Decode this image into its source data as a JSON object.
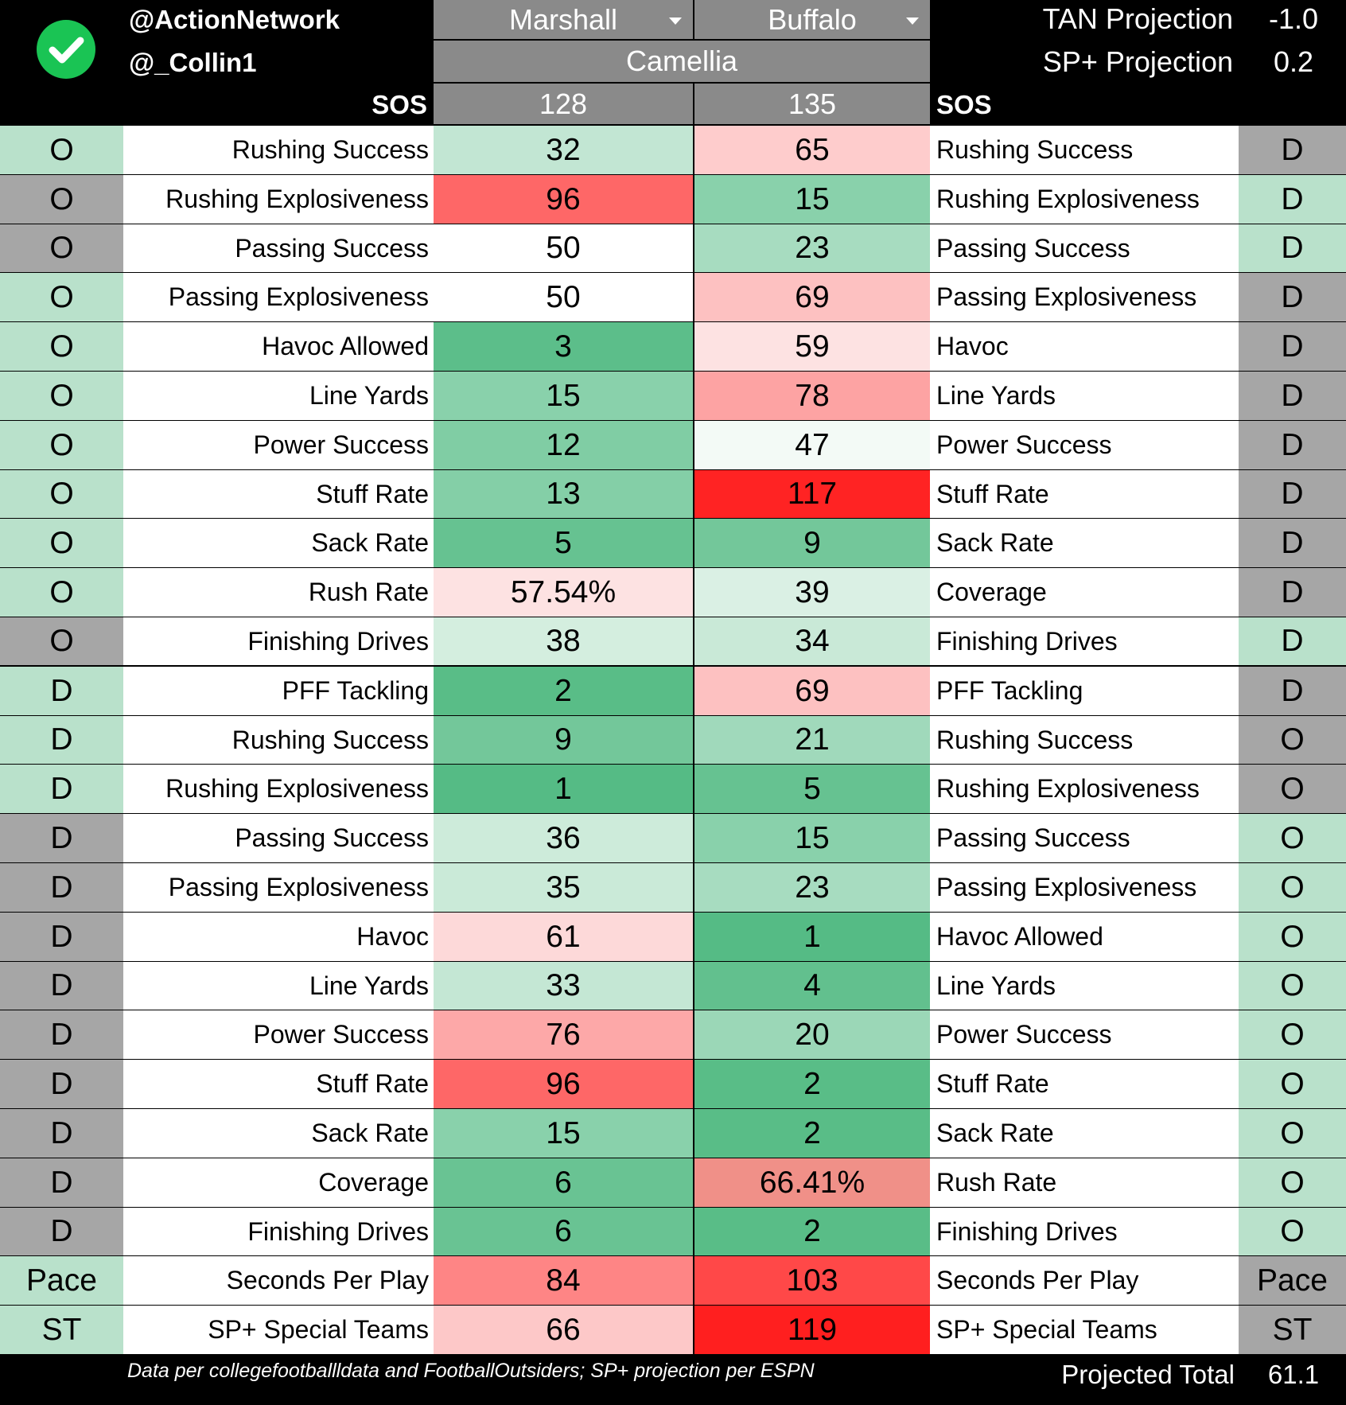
{
  "header": {
    "logo_icon": "green-check-icon",
    "handle1": "@ActionNetwork",
    "handle2": "@_Collin1",
    "team_left": "Marshall",
    "team_right": "Buffalo",
    "bowl": "Camellia",
    "sos_label": "SOS",
    "sos_left": "128",
    "sos_right": "135",
    "tan_label": "TAN Projection",
    "tan_value": "-1.0",
    "sp_label": "SP+ Projection",
    "sp_value": "0.2"
  },
  "colors": {
    "side_green": "#b9e1cb",
    "side_gray": "#a6a6a6",
    "header_gray": "#8a8a8a"
  },
  "rows": [
    {
      "ls": "O",
      "lsc": "g",
      "lm": "Rushing Success",
      "lv": "32",
      "lc": "#c2e6d3",
      "rv": "65",
      "rc": "#fecccc",
      "rm": "Rushing Success",
      "rs": "D",
      "rsc": "x"
    },
    {
      "ls": "O",
      "lsc": "x",
      "lm": "Rushing Explosiveness",
      "lv": "96",
      "lc": "#fe6767",
      "rv": "15",
      "rc": "#89d1ab",
      "rm": "Rushing Explosiveness",
      "rs": "D",
      "rsc": "g"
    },
    {
      "ls": "O",
      "lsc": "x",
      "lm": "Passing Success",
      "lv": "50",
      "lc": "#ffffff",
      "rv": "23",
      "rc": "#a7dcc0",
      "rm": "Passing Success",
      "rs": "D",
      "rsc": "g"
    },
    {
      "ls": "O",
      "lsc": "g",
      "lm": "Passing Explosiveness",
      "lv": "50",
      "lc": "#ffffff",
      "rv": "69",
      "rc": "#fdc1c1",
      "rm": "Passing Explosiveness",
      "rs": "D",
      "rsc": "x"
    },
    {
      "ls": "O",
      "lsc": "g",
      "lm": "Havoc Allowed",
      "lv": "3",
      "lc": "#5cbe8a",
      "rv": "59",
      "rc": "#fde2e2",
      "rm": "Havoc",
      "rs": "D",
      "rsc": "x"
    },
    {
      "ls": "O",
      "lsc": "g",
      "lm": "Line Yards",
      "lv": "15",
      "lc": "#89d1ab",
      "rv": "78",
      "rc": "#fda3a3",
      "rm": "Line Yards",
      "rs": "D",
      "rsc": "x"
    },
    {
      "ls": "O",
      "lsc": "g",
      "lm": "Power Success",
      "lv": "12",
      "lc": "#80cda4",
      "rv": "47",
      "rc": "#f3faf6",
      "rm": "Power Success",
      "rs": "D",
      "rsc": "x"
    },
    {
      "ls": "O",
      "lsc": "g",
      "lm": "Stuff Rate",
      "lv": "13",
      "lc": "#84cfa7",
      "rv": "117",
      "rc": "#ff2323",
      "rm": "Stuff Rate",
      "rs": "D",
      "rsc": "x"
    },
    {
      "ls": "O",
      "lsc": "g",
      "lm": "Sack Rate",
      "lv": "5",
      "lc": "#66c291",
      "rv": "9",
      "rc": "#73c79a",
      "rm": "Sack Rate",
      "rs": "D",
      "rsc": "x"
    },
    {
      "ls": "O",
      "lsc": "g",
      "lm": "Rush Rate",
      "lv": "57.54%",
      "lc": "#fde2e2",
      "rv": "39",
      "rc": "#daf0e4",
      "rm": "Coverage",
      "rs": "D",
      "rsc": "x"
    },
    {
      "ls": "O",
      "lsc": "x",
      "lm": "Finishing Drives",
      "lv": "38",
      "lc": "#d4eedf",
      "rv": "34",
      "rc": "#c9e9d7",
      "rm": "Finishing Drives",
      "rs": "D",
      "rsc": "g"
    },
    {
      "ls": "D",
      "lsc": "g",
      "lm": "PFF Tackling",
      "lv": "2",
      "lc": "#59bd87",
      "rv": "69",
      "rc": "#fdc1c1",
      "rm": "PFF Tackling",
      "rs": "D",
      "rsc": "x"
    },
    {
      "ls": "D",
      "lsc": "g",
      "lm": "Rushing Success",
      "lv": "9",
      "lc": "#73c79a",
      "rv": "21",
      "rc": "#a0d9bb",
      "rm": "Rushing Success",
      "rs": "O",
      "rsc": "x"
    },
    {
      "ls": "D",
      "lsc": "g",
      "lm": "Rushing Explosiveness",
      "lv": "1",
      "lc": "#55bb85",
      "rv": "5",
      "rc": "#66c291",
      "rm": "Rushing Explosiveness",
      "rs": "O",
      "rsc": "x"
    },
    {
      "ls": "D",
      "lsc": "x",
      "lm": "Passing Success",
      "lv": "36",
      "lc": "#cdebda",
      "rv": "15",
      "rc": "#89d1ab",
      "rm": "Passing Success",
      "rs": "O",
      "rsc": "g"
    },
    {
      "ls": "D",
      "lsc": "x",
      "lm": "Passing Explosiveness",
      "lv": "35",
      "lc": "#caead8",
      "rv": "23",
      "rc": "#a7dcc0",
      "rm": "Passing Explosiveness",
      "rs": "O",
      "rsc": "g"
    },
    {
      "ls": "D",
      "lsc": "x",
      "lm": "Havoc",
      "lv": "61",
      "lc": "#fdd9d9",
      "rv": "1",
      "rc": "#55bb85",
      "rm": "Havoc Allowed",
      "rs": "O",
      "rsc": "g"
    },
    {
      "ls": "D",
      "lsc": "x",
      "lm": "Line Yards",
      "lv": "33",
      "lc": "#c4e7d4",
      "rv": "4",
      "rc": "#62c08e",
      "rm": "Line Yards",
      "rs": "O",
      "rsc": "g"
    },
    {
      "ls": "D",
      "lsc": "x",
      "lm": "Power Success",
      "lv": "76",
      "lc": "#fda8a8",
      "rv": "20",
      "rc": "#9bd7b7",
      "rm": "Power Success",
      "rs": "O",
      "rsc": "g"
    },
    {
      "ls": "D",
      "lsc": "x",
      "lm": "Stuff Rate",
      "lv": "96",
      "lc": "#fe6767",
      "rv": "2",
      "rc": "#59bd87",
      "rm": "Stuff Rate",
      "rs": "O",
      "rsc": "g"
    },
    {
      "ls": "D",
      "lsc": "x",
      "lm": "Sack Rate",
      "lv": "15",
      "lc": "#89d1ab",
      "rv": "2",
      "rc": "#59bd87",
      "rm": "Sack Rate",
      "rs": "O",
      "rsc": "g"
    },
    {
      "ls": "D",
      "lsc": "x",
      "lm": "Coverage",
      "lv": "6",
      "lc": "#69c393",
      "rv": "66.41%",
      "rc": "#f09088",
      "rm": "Rush Rate",
      "rs": "O",
      "rsc": "g"
    },
    {
      "ls": "D",
      "lsc": "x",
      "lm": "Finishing Drives",
      "lv": "6",
      "lc": "#69c393",
      "rv": "2",
      "rc": "#59bd87",
      "rm": "Finishing Drives",
      "rs": "O",
      "rsc": "g"
    },
    {
      "ls": "Pace",
      "lsc": "g",
      "lm": "Seconds Per Play",
      "lv": "84",
      "lc": "#fe8585",
      "rv": "103",
      "rc": "#ff4848",
      "rm": "Seconds Per Play",
      "rs": "Pace",
      "rsc": "x"
    },
    {
      "ls": "ST",
      "lsc": "g",
      "lm": "SP+ Special Teams",
      "lv": "66",
      "lc": "#fdc8c8",
      "rv": "119",
      "rc": "#ff1f1f",
      "rm": "SP+ Special Teams",
      "rs": "ST",
      "rsc": "x"
    }
  ],
  "footer": {
    "note": "Data per collegefootballldata and FootballOutsiders; SP+ projection per ESPN",
    "total_label": "Projected Total",
    "total_value": "61.1"
  }
}
